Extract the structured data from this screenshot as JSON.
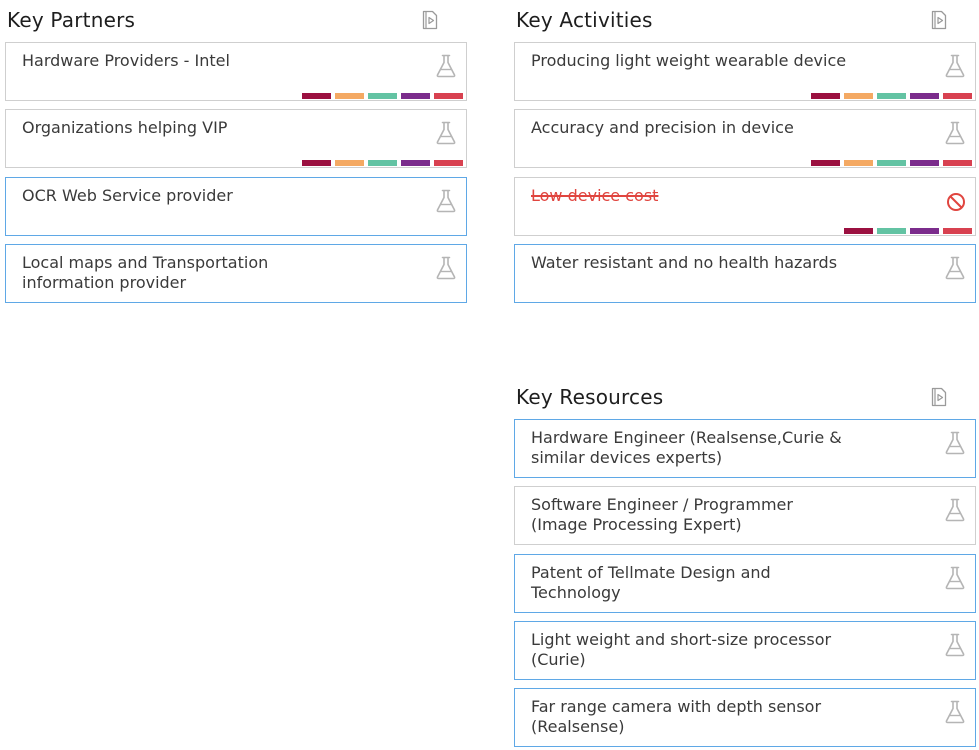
{
  "colors": {
    "selected_border": "#5fa8e6",
    "card_border": "#cfcfcf",
    "strike_red": "#e0453f",
    "tag_maroon": "#9b1040",
    "tag_orange": "#f4a963",
    "tag_teal": "#63c3a3",
    "tag_purple": "#7b2c8c",
    "tag_red": "#d84150"
  },
  "sections": {
    "key_partners": {
      "title": "Key Partners",
      "icon": "play-document-icon",
      "cards": [
        {
          "text": "Hardware Providers - Intel",
          "icon": "flask-icon",
          "selected": false,
          "tags": [
            "maroon",
            "orange",
            "teal",
            "purple",
            "red"
          ]
        },
        {
          "text": "Organizations helping VIP",
          "icon": "flask-icon",
          "selected": false,
          "tags": [
            "maroon",
            "orange",
            "teal",
            "purple",
            "red"
          ]
        },
        {
          "text": "OCR Web Service provider",
          "icon": "flask-icon",
          "selected": true,
          "tags": []
        },
        {
          "text": "Local maps and Transportation information provider",
          "icon": "flask-icon",
          "selected": true,
          "tags": []
        }
      ]
    },
    "key_activities": {
      "title": "Key Activities",
      "icon": "play-document-icon",
      "cards": [
        {
          "text": "Producing light weight wearable device",
          "icon": "flask-icon",
          "selected": false,
          "tags": [
            "maroon",
            "orange",
            "teal",
            "purple",
            "red"
          ]
        },
        {
          "text": "Accuracy and precision in device",
          "icon": "flask-icon",
          "selected": false,
          "tags": [
            "maroon",
            "orange",
            "teal",
            "purple",
            "red"
          ]
        },
        {
          "text": "Low device cost",
          "icon": "no-entry-icon",
          "selected": false,
          "struck": true,
          "tags": [
            "maroon",
            "teal",
            "purple",
            "red"
          ]
        },
        {
          "text": "Water resistant and no health hazards",
          "icon": "flask-icon",
          "selected": true,
          "tags": []
        }
      ]
    },
    "key_resources": {
      "title": "Key Resources",
      "icon": "play-document-icon",
      "cards": [
        {
          "text": "Hardware Engineer (Realsense,Curie & similar devices experts)",
          "icon": "flask-icon",
          "selected": true,
          "tags": []
        },
        {
          "text": "Software Engineer / Programmer (Image Processing Expert)",
          "icon": "flask-icon",
          "selected": false,
          "tags": []
        },
        {
          "text": "Patent of Tellmate Design and Technology",
          "icon": "flask-icon",
          "selected": true,
          "tags": []
        },
        {
          "text": "Light weight and short-size processor (Curie)",
          "icon": "flask-icon",
          "selected": true,
          "tags": []
        },
        {
          "text": "Far range camera with depth sensor (Realsense)",
          "icon": "flask-icon",
          "selected": true,
          "tags": []
        }
      ]
    }
  }
}
